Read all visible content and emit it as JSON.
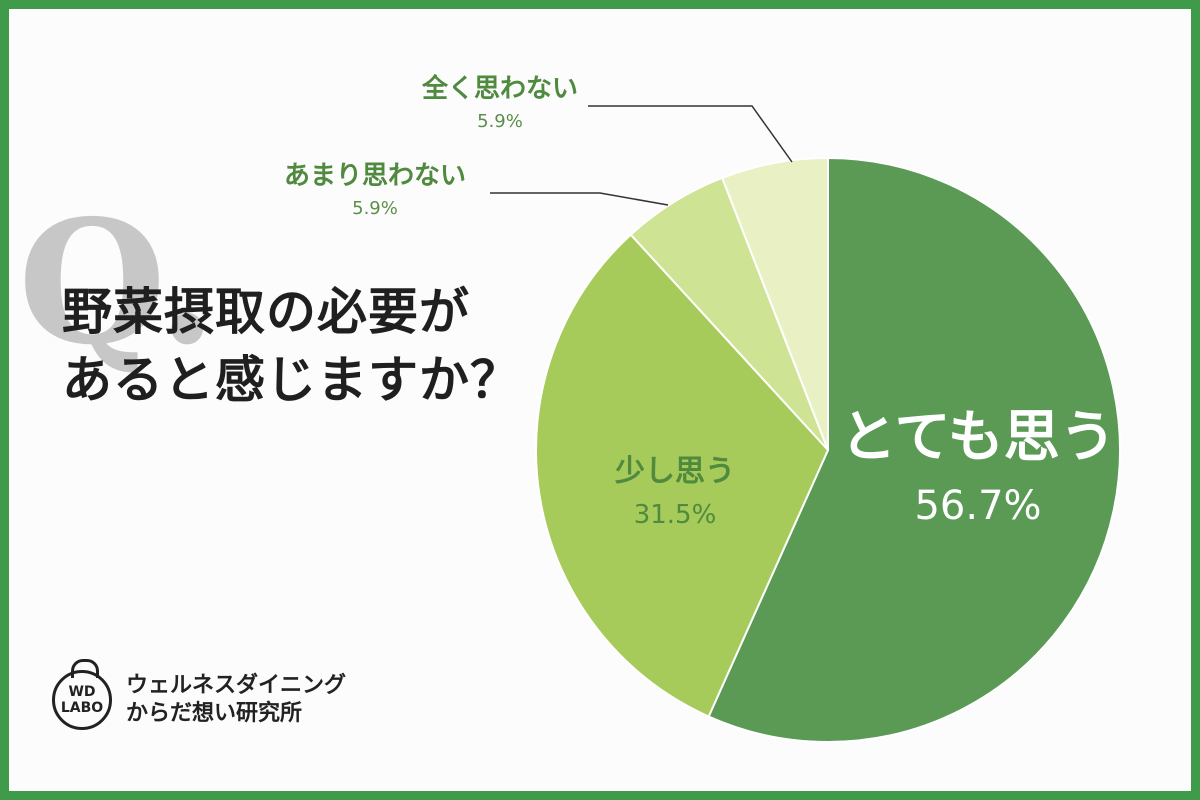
{
  "question": {
    "mark": "Q.",
    "line1": "野菜摂取の必要が",
    "line2": "あると感じますか？"
  },
  "logo": {
    "badge_line1": "WD",
    "badge_line2": "LABO",
    "text_line1": "ウェルネスダイニング",
    "text_line2": "からだ想い研究所"
  },
  "chart_data": {
    "type": "pie",
    "title": "野菜摂取の必要があると感じますか？",
    "slices": [
      {
        "label": "とても思う",
        "value": 56.7,
        "pct_text": "56.7%",
        "color": "#5a9a55"
      },
      {
        "label": "少し思う",
        "value": 31.5,
        "pct_text": "31.5%",
        "color": "#a6cb5a"
      },
      {
        "label": "あまり思わない",
        "value": 5.9,
        "pct_text": "5.9%",
        "color": "#cfe394"
      },
      {
        "label": "全く思わない",
        "value": 5.9,
        "pct_text": "5.9%",
        "color": "#e9f1c4"
      }
    ],
    "start_angle": "12 o'clock",
    "direction": "clockwise"
  },
  "colors": {
    "frame": "#3f9a4a",
    "label_green": "#4f8a3e",
    "leader_line": "#333333"
  }
}
